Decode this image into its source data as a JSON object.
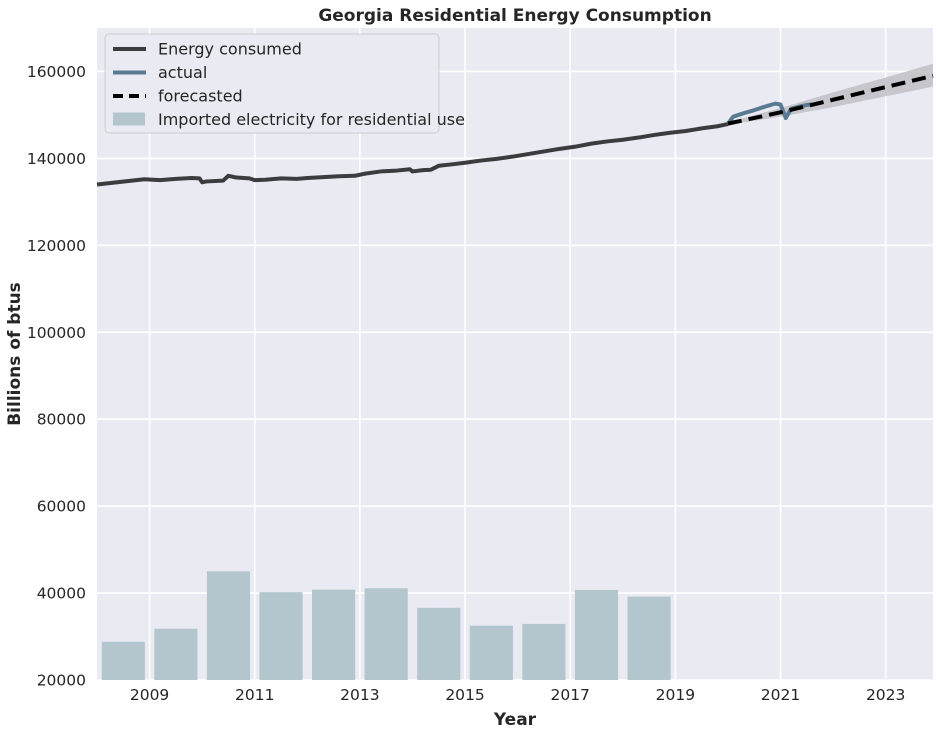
{
  "chart_data": {
    "type": "line",
    "title": "Georgia Residential Energy Consumption",
    "xlabel": "Year",
    "ylabel": "Billions of btus",
    "xlim": [
      2008.0,
      2023.9
    ],
    "ylim": [
      20000,
      170000
    ],
    "x_ticks": [
      2009,
      2011,
      2013,
      2015,
      2017,
      2019,
      2021,
      2023
    ],
    "y_ticks": [
      20000,
      40000,
      60000,
      80000,
      100000,
      120000,
      140000,
      160000
    ],
    "grid": true,
    "legend_position": "top-left",
    "colors": {
      "background": "#eaeaf2",
      "grid": "#ffffff",
      "energy": "#3c3c3e",
      "actual": "#5a7a94",
      "forecast": "#000000",
      "band": "#bdbdc2",
      "bars": "#b3c5cd"
    },
    "legend": [
      {
        "label": "Energy consumed",
        "style": "line",
        "color": "#3c3c3e"
      },
      {
        "label": "actual",
        "style": "line",
        "color": "#5a7a94"
      },
      {
        "label": "forecasted",
        "style": "dashed",
        "color": "#000000"
      },
      {
        "label": "Imported electricity for residential use",
        "style": "patch",
        "color": "#b3c5cd"
      }
    ],
    "series": [
      {
        "name": "Energy consumed",
        "kind": "line",
        "x": [
          2008.0,
          2008.3,
          2008.6,
          2008.9,
          2009.2,
          2009.5,
          2009.8,
          2009.95,
          2010.0,
          2010.08,
          2010.4,
          2010.5,
          2010.65,
          2010.9,
          2011.0,
          2011.2,
          2011.5,
          2011.8,
          2012.0,
          2012.3,
          2012.6,
          2012.9,
          2013.1,
          2013.4,
          2013.7,
          2013.95,
          2014.0,
          2014.2,
          2014.35,
          2014.5,
          2014.8,
          2015.0,
          2015.3,
          2015.6,
          2015.9,
          2016.2,
          2016.5,
          2016.8,
          2017.1,
          2017.4,
          2017.7,
          2018.0,
          2018.3,
          2018.6,
          2018.9,
          2019.2,
          2019.5,
          2019.8,
          2020.0
        ],
        "y": [
          134000,
          134400,
          134800,
          135200,
          135000,
          135300,
          135500,
          135400,
          134500,
          134700,
          134900,
          136000,
          135600,
          135400,
          135000,
          135100,
          135400,
          135300,
          135500,
          135700,
          135900,
          136000,
          136500,
          137000,
          137200,
          137500,
          137000,
          137300,
          137400,
          138300,
          138700,
          139000,
          139500,
          139900,
          140400,
          141000,
          141600,
          142200,
          142700,
          143400,
          143900,
          144300,
          144800,
          145400,
          145900,
          146300,
          146900,
          147400,
          147900
        ]
      },
      {
        "name": "actual",
        "kind": "line",
        "x": [
          2020.0,
          2020.1,
          2020.3,
          2020.5,
          2020.7,
          2020.9,
          2021.0,
          2021.1,
          2021.2,
          2021.35,
          2021.5,
          2021.6
        ],
        "y": [
          148000,
          149600,
          150400,
          151100,
          151900,
          152600,
          152400,
          149300,
          151400,
          151900,
          152300,
          152400
        ]
      },
      {
        "name": "forecasted",
        "kind": "dashed",
        "x": [
          2020.0,
          2021.0,
          2022.0,
          2023.0,
          2023.9
        ],
        "y": [
          148000,
          150600,
          153500,
          156400,
          159000
        ],
        "band_upper": [
          148300,
          151600,
          155200,
          158600,
          161800
        ],
        "band_lower": [
          147700,
          149600,
          151800,
          154300,
          156500
        ]
      },
      {
        "name": "Imported electricity for residential use",
        "kind": "bar",
        "x": [
          2008.5,
          2009.5,
          2010.5,
          2011.5,
          2012.5,
          2013.5,
          2014.5,
          2015.5,
          2016.5,
          2017.5,
          2018.5
        ],
        "values": [
          28800,
          31800,
          45000,
          40200,
          40800,
          41100,
          36600,
          32500,
          32900,
          40700,
          39200
        ],
        "bar_width_years": 0.82
      }
    ]
  }
}
